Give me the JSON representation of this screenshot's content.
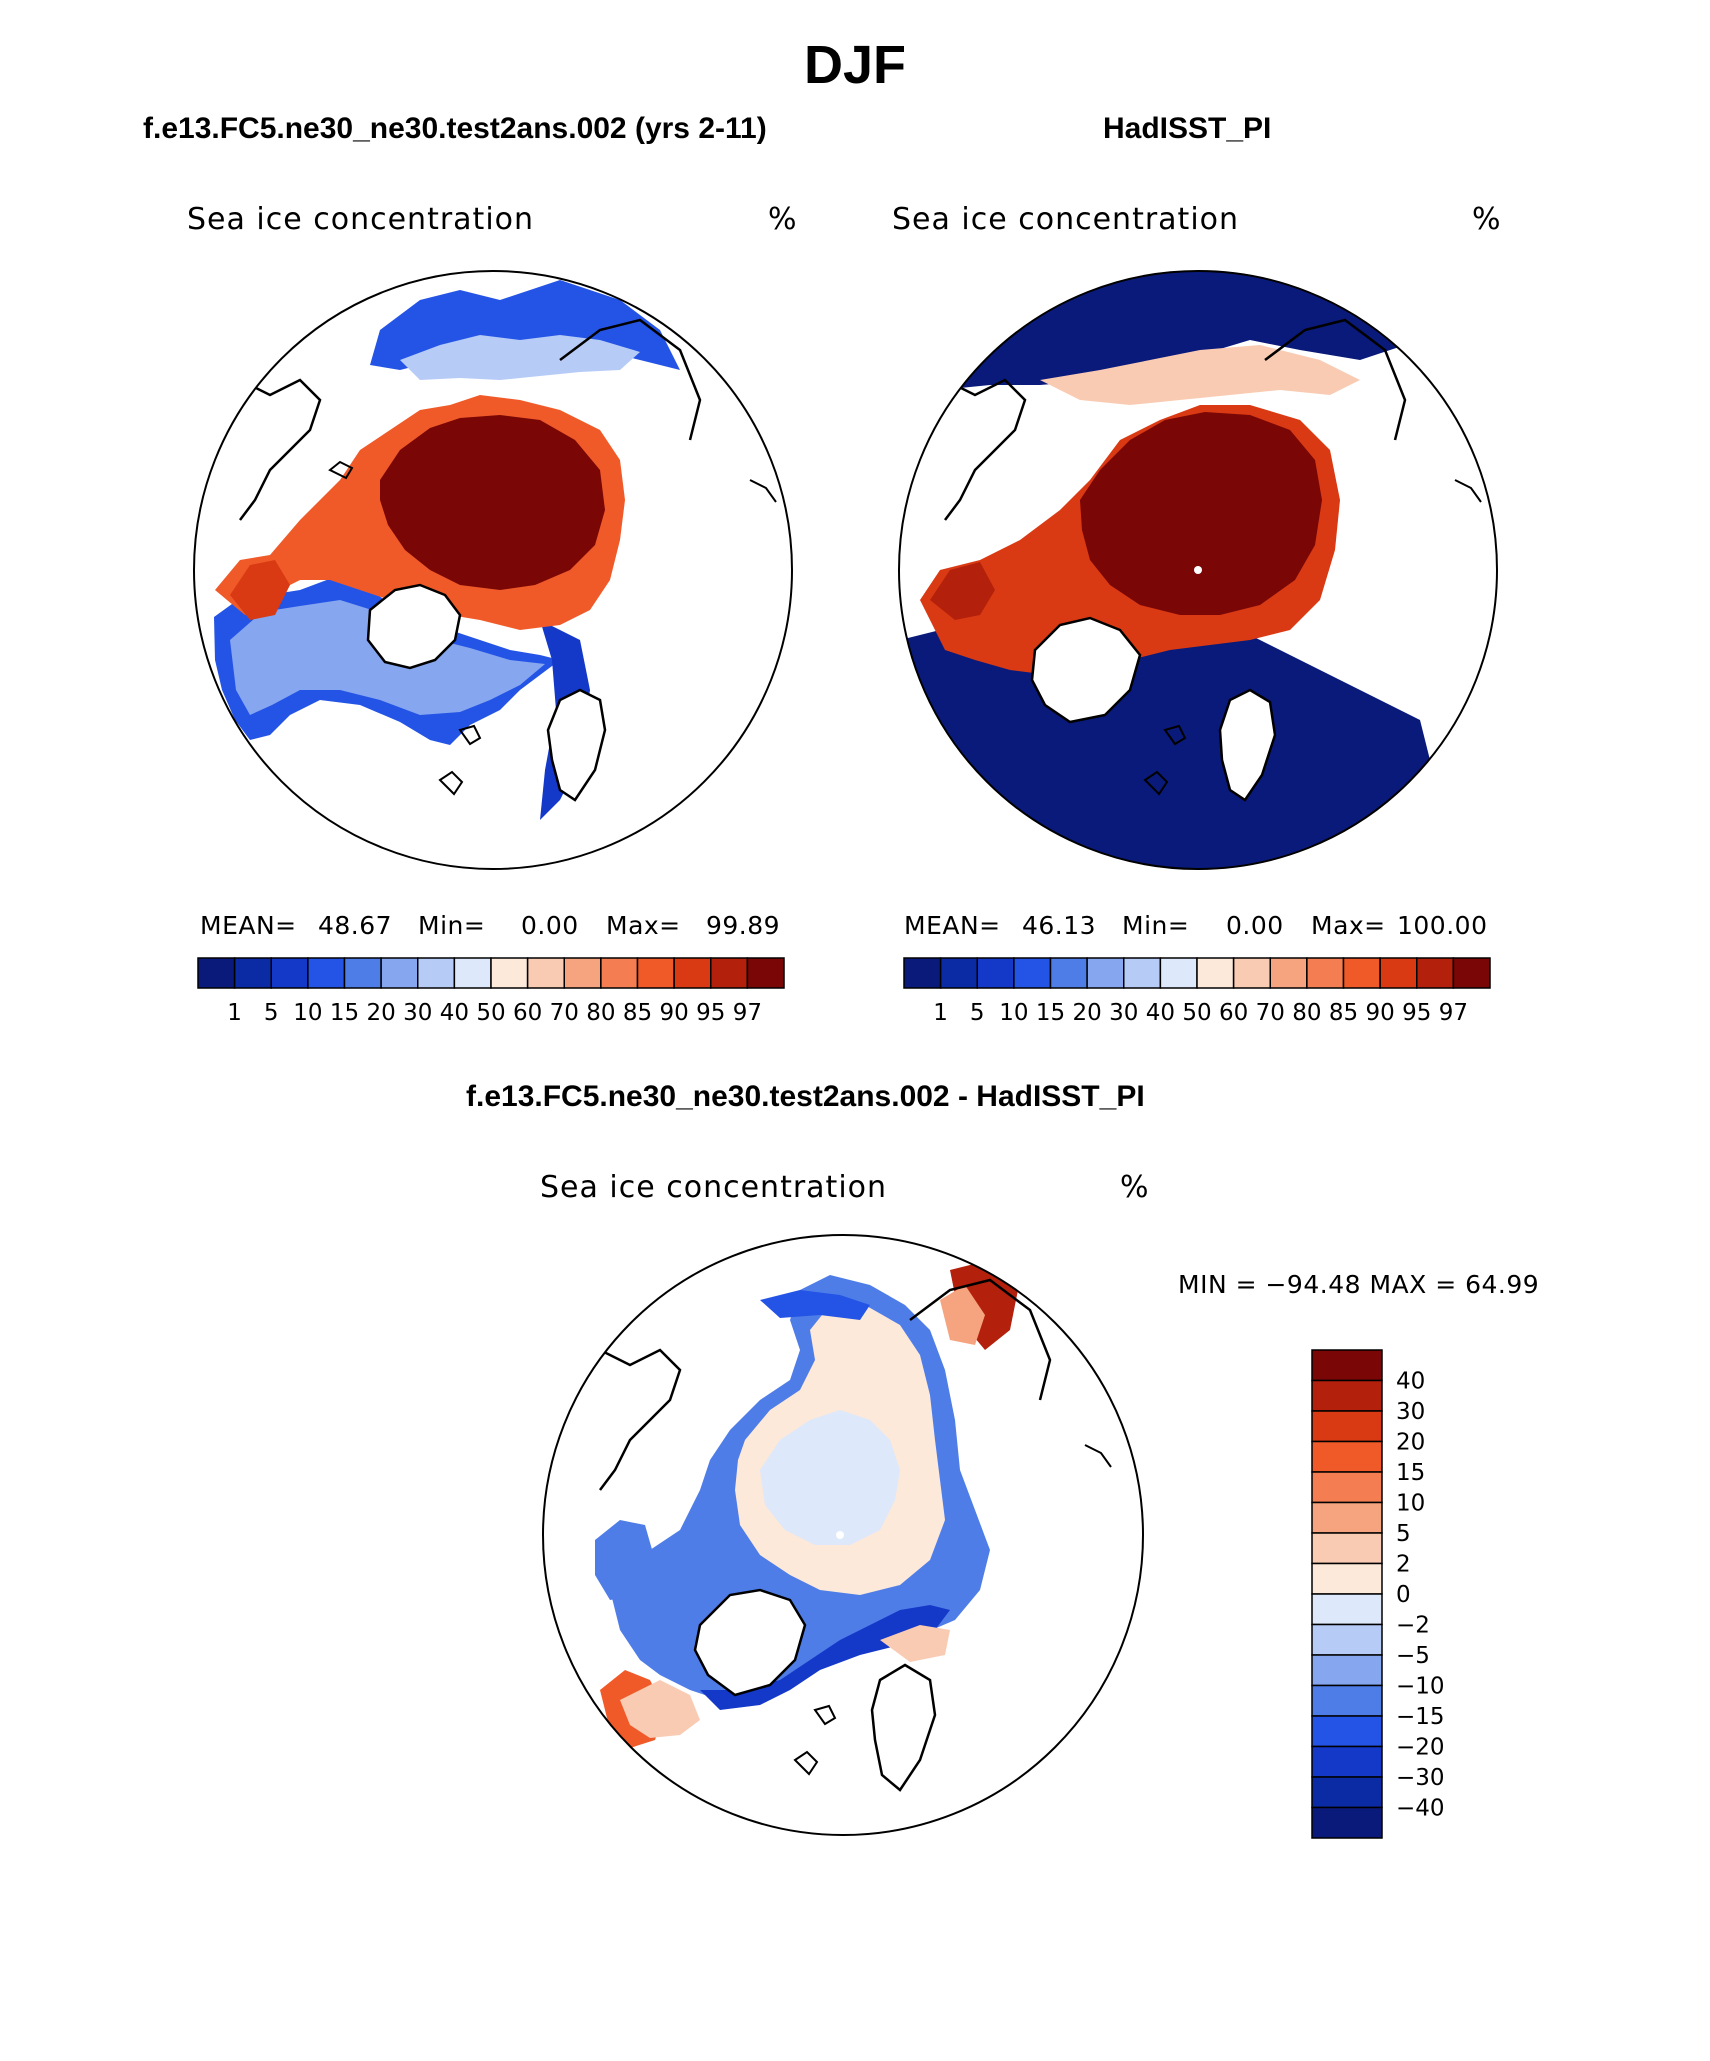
{
  "page": {
    "title": "DJF",
    "subtitle_left": "f.e13.FC5.ne30_ne30.test2ans.002 (yrs 2-11)",
    "subtitle_right": "HadISST_PI",
    "subtitle_diff": "f.e13.FC5.ne30_ne30.test2ans.002 - HadISST_PI"
  },
  "chart_data": [
    {
      "type": "heatmap",
      "projection": "north polar stereographic",
      "title": "Sea ice concentration",
      "units": "%",
      "stats": {
        "mean_label": "MEAN=",
        "mean": "48.67",
        "min_label": "Min=",
        "min": "0.00",
        "max_label": "Max=",
        "max": "99.89"
      },
      "colorbar": {
        "orientation": "horizontal",
        "levels": [
          "1",
          "5",
          "10",
          "15",
          "20",
          "30",
          "40",
          "50",
          "60",
          "70",
          "80",
          "85",
          "90",
          "95",
          "97"
        ],
        "colors": [
          "#0a1a7a",
          "#0a2ba3",
          "#1439c8",
          "#2454e6",
          "#4f7de8",
          "#86a6ef",
          "#b6cbf6",
          "#dde8fb",
          "#fce9da",
          "#f9cbb2",
          "#f5a47f",
          "#f47e52",
          "#f05a28",
          "#d93a13",
          "#b3200c",
          "#7a0606"
        ]
      }
    },
    {
      "type": "heatmap",
      "projection": "north polar stereographic",
      "title": "Sea ice concentration",
      "units": "%",
      "stats": {
        "mean_label": "MEAN=",
        "mean": "46.13",
        "min_label": "Min=",
        "min": "0.00",
        "max_label": "Max=",
        "max": "100.00"
      },
      "colorbar": {
        "orientation": "horizontal",
        "levels": [
          "1",
          "5",
          "10",
          "15",
          "20",
          "30",
          "40",
          "50",
          "60",
          "70",
          "80",
          "85",
          "90",
          "95",
          "97"
        ],
        "colors": [
          "#0a1a7a",
          "#0a2ba3",
          "#1439c8",
          "#2454e6",
          "#4f7de8",
          "#86a6ef",
          "#b6cbf6",
          "#dde8fb",
          "#fce9da",
          "#f9cbb2",
          "#f5a47f",
          "#f47e52",
          "#f05a28",
          "#d93a13",
          "#b3200c",
          "#7a0606"
        ]
      }
    },
    {
      "type": "heatmap",
      "projection": "north polar stereographic",
      "title": "Sea ice concentration",
      "units": "%",
      "stats": {
        "text": "MIN = −94.48 MAX =   64.99",
        "min": -94.48,
        "max": 64.99
      },
      "colorbar": {
        "orientation": "vertical",
        "levels_top_to_bottom": [
          "40",
          "30",
          "20",
          "15",
          "10",
          "5",
          "2",
          "0",
          "−2",
          "−5",
          "−10",
          "−15",
          "−20",
          "−30",
          "−40"
        ],
        "colors_top_to_bottom": [
          "#7a0606",
          "#b3200c",
          "#d93a13",
          "#f05a28",
          "#f47e52",
          "#f5a47f",
          "#f9cbb2",
          "#fce9da",
          "#dde8fb",
          "#b6cbf6",
          "#86a6ef",
          "#4f7de8",
          "#2454e6",
          "#1439c8",
          "#0a2ba3",
          "#0a1a7a"
        ]
      }
    }
  ]
}
